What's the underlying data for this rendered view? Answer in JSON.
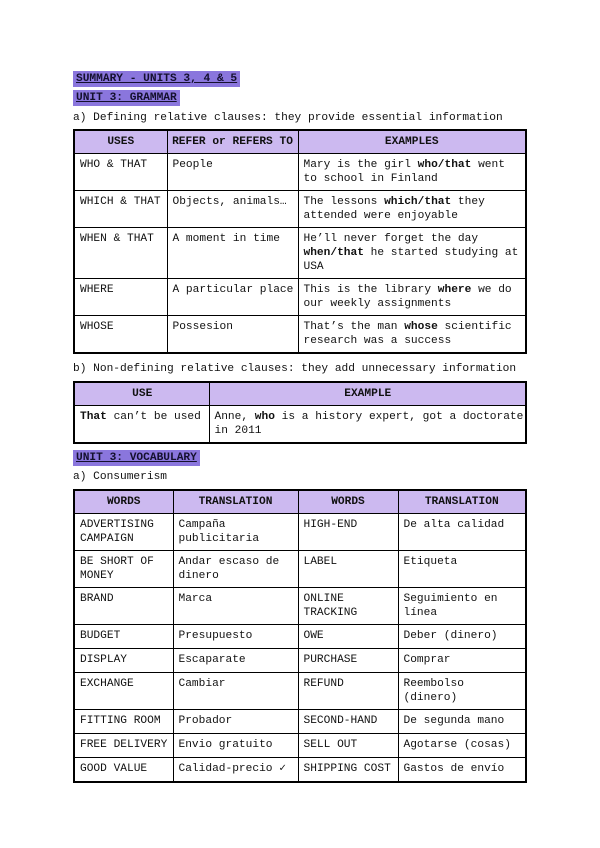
{
  "colors": {
    "heading_highlight": "#8a76dd",
    "table_header_background": "#ccb9f0",
    "table_border": "#000000",
    "text": "#111111",
    "page_background": "#ffffff"
  },
  "title": "SUMMARY - UNITS 3, 4 & 5",
  "grammar": {
    "heading": "UNIT 3: GRAMMAR",
    "defining": {
      "intro": "a) Defining relative clauses: they provide essential information",
      "headers": [
        "USES",
        "REFER or REFERS TO",
        "EXAMPLES"
      ],
      "rows": [
        {
          "use": "WHO & THAT",
          "refer": "People",
          "ex_pre": "Mary is the girl ",
          "ex_bold": "who/that",
          "ex_post": " went to school in Finland"
        },
        {
          "use": "WHICH & THAT",
          "refer": "Objects, animals…",
          "ex_pre": "The lessons ",
          "ex_bold": "which/that",
          "ex_post": " they attended were enjoyable"
        },
        {
          "use": "WHEN & THAT",
          "refer": "A moment in time",
          "ex_pre": "He’ll never forget the day ",
          "ex_bold": "when/that",
          "ex_post": " he started studying at USA"
        },
        {
          "use": "WHERE",
          "refer": "A particular place",
          "ex_pre": "This is the library ",
          "ex_bold": "where",
          "ex_post": " we do our weekly assignments"
        },
        {
          "use": "WHOSE",
          "refer": "Possesion",
          "ex_pre": "That’s the man ",
          "ex_bold": "whose",
          "ex_post": " scientific research was a success"
        }
      ]
    },
    "nondefining": {
      "intro": "b) Non-defining relative clauses: they add unnecessary information",
      "headers": [
        "USE",
        "EXAMPLE"
      ],
      "row": {
        "use_bold": "That",
        "use_post": " can’t be used",
        "ex_pre": "Anne, ",
        "ex_bold": "who",
        "ex_post": " is a history expert, got a doctorate in 2011"
      }
    }
  },
  "vocabulary": {
    "heading": "UNIT 3: VOCABULARY",
    "intro": "a) Consumerism",
    "headers": [
      "WORDS",
      "TRANSLATION",
      "WORDS",
      "TRANSLATION"
    ],
    "rows": [
      [
        "ADVERTISING CAMPAIGN",
        "Campaña publicitaria",
        "HIGH-END",
        "De alta calidad"
      ],
      [
        "BE SHORT OF MONEY",
        "Andar escaso de dinero",
        "LABEL",
        "Etiqueta"
      ],
      [
        "BRAND",
        "Marca",
        "ONLINE TRACKING",
        "Seguimiento en línea"
      ],
      [
        "BUDGET",
        "Presupuesto",
        "OWE",
        "Deber (dinero)"
      ],
      [
        "DISPLAY",
        "Escaparate",
        "PURCHASE",
        "Comprar"
      ],
      [
        "EXCHANGE",
        "Cambiar",
        "REFUND",
        "Reembolso (dinero)"
      ],
      [
        "FITTING ROOM",
        "Probador",
        "SECOND-HAND",
        "De segunda mano"
      ],
      [
        "FREE DELIVERY",
        "Envio gratuito",
        "SELL OUT",
        "Agotarse (cosas)"
      ],
      [
        "GOOD VALUE",
        "Calidad-precio ✓",
        "SHIPPING COST",
        "Gastos de envío"
      ]
    ]
  }
}
